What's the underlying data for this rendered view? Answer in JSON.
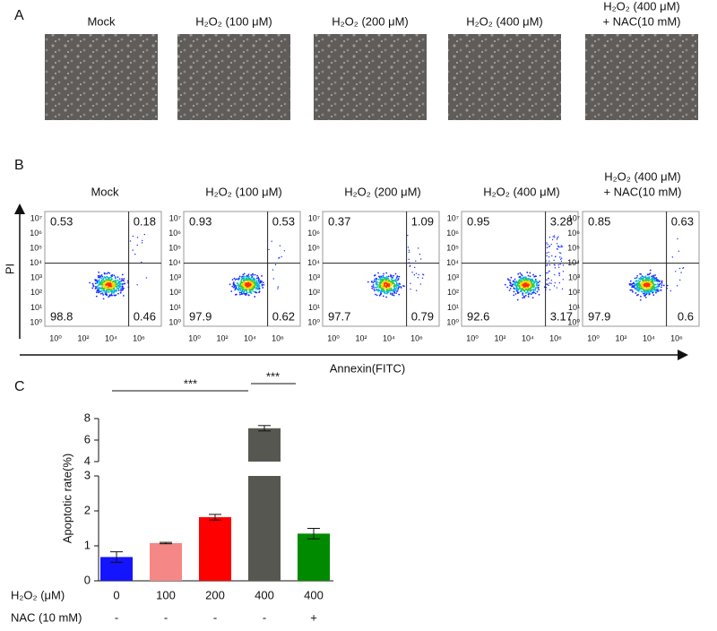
{
  "panel_a": {
    "letter": "A",
    "images": [
      {
        "title": [
          "Mock"
        ]
      },
      {
        "title": [
          "H₂O₂ (100 μM)"
        ]
      },
      {
        "title": [
          "H₂O₂ (200 μM)"
        ]
      },
      {
        "title": [
          "H₂O₂ (400 μM)"
        ]
      },
      {
        "title": [
          "H₂O₂ (400 μM)",
          "+ NAC(10 mM)"
        ]
      }
    ]
  },
  "panel_b": {
    "letter": "B",
    "xlabel": "Annexin(FITC)",
    "ylabel": "PI",
    "xticks": [
      "10⁰",
      "10²",
      "10⁴",
      "10⁶"
    ],
    "yticks": [
      "10⁷",
      "10⁶",
      "10⁵",
      "10⁴",
      "10³",
      "10²",
      "10¹",
      "10⁰"
    ],
    "plots": [
      {
        "title": [
          "Mock"
        ],
        "quadrants": [
          0.53,
          0.18,
          98.8,
          0.46
        ]
      },
      {
        "title": [
          "H₂O₂ (100 μM)"
        ],
        "quadrants": [
          0.93,
          0.53,
          97.9,
          0.62
        ]
      },
      {
        "title": [
          "H₂O₂ (200 μM)"
        ],
        "quadrants": [
          0.37,
          1.09,
          97.7,
          0.79
        ]
      },
      {
        "title": [
          "H₂O₂ (400 μM)"
        ],
        "quadrants": [
          0.95,
          3.28,
          92.6,
          3.17
        ]
      },
      {
        "title": [
          "H₂O₂ (400 μM)",
          "+ NAC(10 mM)"
        ],
        "quadrants": [
          0.85,
          0.63,
          97.9,
          0.6
        ]
      }
    ]
  },
  "chart_data": {
    "type": "bar",
    "letter": "C",
    "ylabel": "Apoptotic rate(%)",
    "row_labels": [
      "H₂O₂ (μM)",
      "NAC (10 mM)"
    ],
    "categories": [
      "0",
      "100",
      "200",
      "400",
      "400"
    ],
    "nac": [
      "-",
      "-",
      "-",
      "-",
      "+"
    ],
    "values": [
      0.68,
      1.08,
      1.82,
      7.1,
      1.35
    ],
    "errors": [
      0.15,
      0.02,
      0.08,
      0.25,
      0.15
    ],
    "colors": [
      "#1414ff",
      "#f58787",
      "#ff0000",
      "#575752",
      "#008a00"
    ],
    "ylim": [
      0,
      8
    ],
    "axis_break": [
      3,
      4
    ],
    "yticks": [
      0,
      1,
      2,
      3,
      4,
      6,
      8
    ],
    "annotations": [
      "***",
      "***"
    ]
  }
}
